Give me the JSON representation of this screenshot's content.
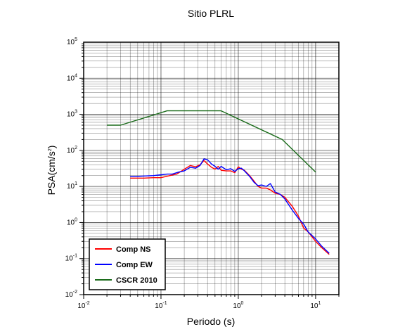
{
  "chart_data": {
    "type": "line",
    "title": "Sitio PLRL",
    "xlabel": "Periodo (s)",
    "ylabel": "PSA(cm/s²)",
    "ylabel_main": "PSA(cm/s",
    "ylabel_sup": "2",
    "ylabel_end": ")",
    "xscale": "log",
    "yscale": "log",
    "xlim": [
      0.01,
      20
    ],
    "ylim": [
      0.01,
      100000
    ],
    "grid": true,
    "legend_position": "bottom-left",
    "x_ticks": [
      {
        "value": 0.01,
        "base": "10",
        "exp": "-2"
      },
      {
        "value": 0.1,
        "base": "10",
        "exp": "-1"
      },
      {
        "value": 1,
        "base": "10",
        "exp": "0"
      },
      {
        "value": 10,
        "base": "10",
        "exp": "1"
      }
    ],
    "y_ticks": [
      {
        "value": 0.01,
        "base": "10",
        "exp": "-2"
      },
      {
        "value": 0.1,
        "base": "10",
        "exp": "-1"
      },
      {
        "value": 1,
        "base": "10",
        "exp": "0"
      },
      {
        "value": 10,
        "base": "10",
        "exp": "1"
      },
      {
        "value": 100,
        "base": "10",
        "exp": "2"
      },
      {
        "value": 1000,
        "base": "10",
        "exp": "3"
      },
      {
        "value": 10000,
        "base": "10",
        "exp": "4"
      },
      {
        "value": 100000,
        "base": "10",
        "exp": "5"
      }
    ],
    "series": [
      {
        "name": "Comp NS",
        "color": "#ff0000",
        "points": [
          [
            0.04,
            17
          ],
          [
            0.05,
            17
          ],
          [
            0.06,
            17
          ],
          [
            0.08,
            17.5
          ],
          [
            0.1,
            17.5
          ],
          [
            0.13,
            20
          ],
          [
            0.16,
            22
          ],
          [
            0.2,
            30
          ],
          [
            0.24,
            38
          ],
          [
            0.28,
            35
          ],
          [
            0.32,
            40
          ],
          [
            0.36,
            52
          ],
          [
            0.4,
            42
          ],
          [
            0.45,
            34
          ],
          [
            0.5,
            30
          ],
          [
            0.55,
            36
          ],
          [
            0.6,
            28
          ],
          [
            0.7,
            27
          ],
          [
            0.8,
            27
          ],
          [
            0.9,
            24
          ],
          [
            1.0,
            35
          ],
          [
            1.1,
            30
          ],
          [
            1.2,
            28
          ],
          [
            1.4,
            20
          ],
          [
            1.6,
            14
          ],
          [
            1.8,
            10
          ],
          [
            2.0,
            9
          ],
          [
            2.3,
            9
          ],
          [
            2.6,
            8
          ],
          [
            3.0,
            6.5
          ],
          [
            3.5,
            6
          ],
          [
            4.0,
            5
          ],
          [
            5.0,
            2.8
          ],
          [
            6.0,
            1.5
          ],
          [
            7.0,
            0.7
          ],
          [
            8.0,
            0.55
          ],
          [
            10.0,
            0.3
          ],
          [
            12.0,
            0.2
          ],
          [
            15.0,
            0.13
          ]
        ]
      },
      {
        "name": "Comp EW",
        "color": "#0000ff",
        "points": [
          [
            0.04,
            19
          ],
          [
            0.05,
            19
          ],
          [
            0.06,
            19.5
          ],
          [
            0.08,
            20
          ],
          [
            0.1,
            21
          ],
          [
            0.12,
            22
          ],
          [
            0.14,
            22
          ],
          [
            0.17,
            25
          ],
          [
            0.2,
            27
          ],
          [
            0.24,
            34
          ],
          [
            0.28,
            32
          ],
          [
            0.32,
            38
          ],
          [
            0.36,
            58
          ],
          [
            0.4,
            55
          ],
          [
            0.45,
            42
          ],
          [
            0.5,
            36
          ],
          [
            0.55,
            30
          ],
          [
            0.6,
            36
          ],
          [
            0.7,
            29
          ],
          [
            0.8,
            31
          ],
          [
            0.9,
            26
          ],
          [
            1.0,
            31
          ],
          [
            1.1,
            32
          ],
          [
            1.2,
            27
          ],
          [
            1.4,
            19
          ],
          [
            1.6,
            13
          ],
          [
            1.8,
            10.5
          ],
          [
            2.0,
            11
          ],
          [
            2.3,
            10
          ],
          [
            2.6,
            12
          ],
          [
            3.0,
            7
          ],
          [
            3.5,
            6
          ],
          [
            4.0,
            4.5
          ],
          [
            5.0,
            2.2
          ],
          [
            6.0,
            1.3
          ],
          [
            7.0,
            0.9
          ],
          [
            8.0,
            0.55
          ],
          [
            10.0,
            0.35
          ],
          [
            12.0,
            0.22
          ],
          [
            15.0,
            0.14
          ]
        ]
      },
      {
        "name": "CSCR 2010",
        "color": "#1a6b1a",
        "points": [
          [
            0.02,
            500
          ],
          [
            0.03,
            500
          ],
          [
            0.12,
            1250
          ],
          [
            0.6,
            1250
          ],
          [
            3.7,
            200
          ],
          [
            10.0,
            25
          ]
        ]
      }
    ]
  }
}
